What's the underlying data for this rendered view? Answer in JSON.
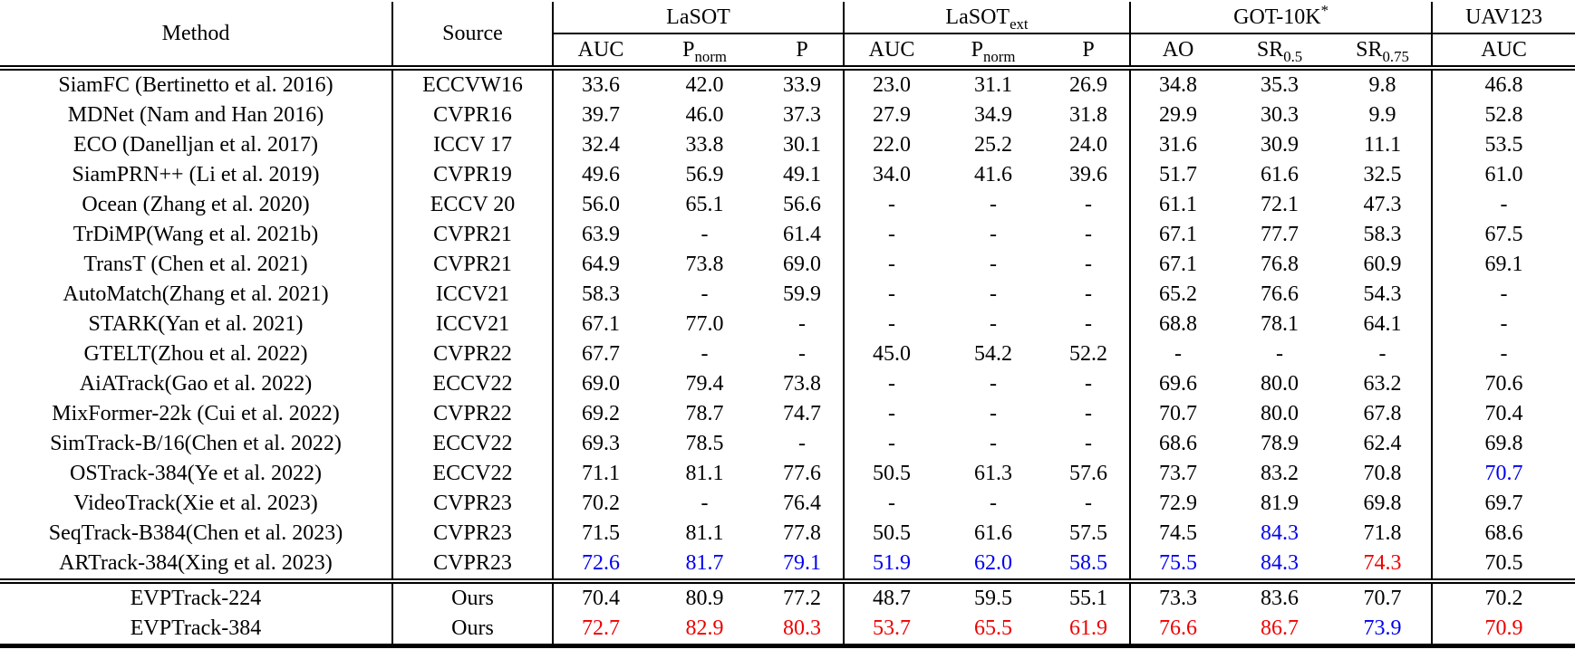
{
  "table": {
    "header": {
      "method": "Method",
      "source": "Source",
      "groups": [
        {
          "name": "LaSOT",
          "columns": [
            {
              "label": "AUC"
            },
            {
              "label": "P",
              "sub": "norm"
            },
            {
              "label": "P"
            }
          ]
        },
        {
          "name": "LaSOT",
          "name_sub": "ext",
          "columns": [
            {
              "label": "AUC"
            },
            {
              "label": "P",
              "sub": "norm"
            },
            {
              "label": "P"
            }
          ]
        },
        {
          "name": "GOT-10K",
          "name_sup": "*",
          "columns": [
            {
              "label": "AO"
            },
            {
              "label": "SR",
              "sub": "0.5"
            },
            {
              "label": "SR",
              "sub": "0.75"
            }
          ]
        },
        {
          "name": "UAV123",
          "columns": [
            {
              "label": "AUC"
            }
          ]
        }
      ]
    },
    "colors": {
      "blue": "#0000ee",
      "red": "#ee0000",
      "black": "#000000"
    },
    "rows": [
      {
        "method": "SiamFC (Bertinetto et al. 2016)",
        "source": "ECCVW16",
        "values": [
          "33.6",
          "42.0",
          "33.9",
          "23.0",
          "31.1",
          "26.9",
          "34.8",
          "35.3",
          "9.8",
          "46.8"
        ]
      },
      {
        "method": "MDNet (Nam and Han 2016)",
        "source": "CVPR16",
        "values": [
          "39.7",
          "46.0",
          "37.3",
          "27.9",
          "34.9",
          "31.8",
          "29.9",
          "30.3",
          "9.9",
          "52.8"
        ]
      },
      {
        "method": "ECO (Danelljan et al. 2017)",
        "source": "ICCV 17",
        "values": [
          "32.4",
          "33.8",
          "30.1",
          "22.0",
          "25.2",
          "24.0",
          "31.6",
          "30.9",
          "11.1",
          "53.5"
        ]
      },
      {
        "method": "SiamPRN++ (Li et al. 2019)",
        "source": "CVPR19",
        "values": [
          "49.6",
          "56.9",
          "49.1",
          "34.0",
          "41.6",
          "39.6",
          "51.7",
          "61.6",
          "32.5",
          "61.0"
        ]
      },
      {
        "method": "Ocean (Zhang et al. 2020)",
        "source": "ECCV 20",
        "values": [
          "56.0",
          "65.1",
          "56.6",
          "-",
          "-",
          "-",
          "61.1",
          "72.1",
          "47.3",
          "-"
        ]
      },
      {
        "method": "TrDiMP(Wang et al. 2021b)",
        "source": "CVPR21",
        "values": [
          "63.9",
          "-",
          "61.4",
          "-",
          "-",
          "-",
          "67.1",
          "77.7",
          "58.3",
          "67.5"
        ]
      },
      {
        "method": "TransT (Chen et al. 2021)",
        "source": "CVPR21",
        "values": [
          "64.9",
          "73.8",
          "69.0",
          "-",
          "-",
          "-",
          "67.1",
          "76.8",
          "60.9",
          "69.1"
        ]
      },
      {
        "method": "AutoMatch(Zhang et al. 2021)",
        "source": "ICCV21",
        "values": [
          "58.3",
          "-",
          "59.9",
          "-",
          "-",
          "-",
          "65.2",
          "76.6",
          "54.3",
          "-"
        ]
      },
      {
        "method": "STARK(Yan et al. 2021)",
        "source": "ICCV21",
        "values": [
          "67.1",
          "77.0",
          "-",
          "-",
          "-",
          "-",
          "68.8",
          "78.1",
          "64.1",
          "-"
        ]
      },
      {
        "method": "GTELT(Zhou et al. 2022)",
        "source": "CVPR22",
        "values": [
          "67.7",
          "-",
          "-",
          "45.0",
          "54.2",
          "52.2",
          "-",
          "-",
          "-",
          "-"
        ]
      },
      {
        "method": "AiATrack(Gao et al. 2022)",
        "source": "ECCV22",
        "values": [
          "69.0",
          "79.4",
          "73.8",
          "-",
          "-",
          "-",
          "69.6",
          "80.0",
          "63.2",
          "70.6"
        ]
      },
      {
        "method": "MixFormer-22k (Cui et al. 2022)",
        "source": "CVPR22",
        "values": [
          "69.2",
          "78.7",
          "74.7",
          "-",
          "-",
          "-",
          "70.7",
          "80.0",
          "67.8",
          "70.4"
        ]
      },
      {
        "method": "SimTrack-B/16(Chen et al. 2022)",
        "source": "ECCV22",
        "values": [
          "69.3",
          "78.5",
          "-",
          "-",
          "-",
          "-",
          "68.6",
          "78.9",
          "62.4",
          "69.8"
        ]
      },
      {
        "method": "OSTrack-384(Ye et al. 2022)",
        "source": "ECCV22",
        "values": [
          "71.1",
          "81.1",
          "77.6",
          "50.5",
          "61.3",
          "57.6",
          "73.7",
          "83.2",
          "70.8",
          {
            "v": "70.7",
            "c": "blue"
          }
        ]
      },
      {
        "method": "VideoTrack(Xie et al. 2023)",
        "source": "CVPR23",
        "values": [
          "70.2",
          "-",
          "76.4",
          "-",
          "-",
          "-",
          "72.9",
          "81.9",
          "69.8",
          "69.7"
        ]
      },
      {
        "method": "SeqTrack-B384(Chen et al. 2023)",
        "source": "CVPR23",
        "values": [
          "71.5",
          "81.1",
          "77.8",
          "50.5",
          "61.6",
          "57.5",
          "74.5",
          {
            "v": "84.3",
            "c": "blue"
          },
          "71.8",
          "68.6"
        ]
      },
      {
        "method": "ARTrack-384(Xing et al. 2023)",
        "source": "CVPR23",
        "values": [
          {
            "v": "72.6",
            "c": "blue"
          },
          {
            "v": "81.7",
            "c": "blue"
          },
          {
            "v": "79.1",
            "c": "blue"
          },
          {
            "v": "51.9",
            "c": "blue"
          },
          {
            "v": "62.0",
            "c": "blue"
          },
          {
            "v": "58.5",
            "c": "blue"
          },
          {
            "v": "75.5",
            "c": "blue"
          },
          {
            "v": "84.3",
            "c": "blue"
          },
          {
            "v": "74.3",
            "c": "red"
          },
          "70.5"
        ]
      }
    ],
    "ours_rows": [
      {
        "method": "EVPTrack-224",
        "source": "Ours",
        "values": [
          "70.4",
          "80.9",
          "77.2",
          "48.7",
          "59.5",
          "55.1",
          "73.3",
          "83.6",
          "70.7",
          "70.2"
        ]
      },
      {
        "method": "EVPTrack-384",
        "source": "Ours",
        "values": [
          {
            "v": "72.7",
            "c": "red"
          },
          {
            "v": "82.9",
            "c": "red"
          },
          {
            "v": "80.3",
            "c": "red"
          },
          {
            "v": "53.7",
            "c": "red"
          },
          {
            "v": "65.5",
            "c": "red"
          },
          {
            "v": "61.9",
            "c": "red"
          },
          {
            "v": "76.6",
            "c": "red"
          },
          {
            "v": "86.7",
            "c": "red"
          },
          {
            "v": "73.9",
            "c": "blue"
          },
          {
            "v": "70.9",
            "c": "red"
          }
        ]
      }
    ]
  }
}
